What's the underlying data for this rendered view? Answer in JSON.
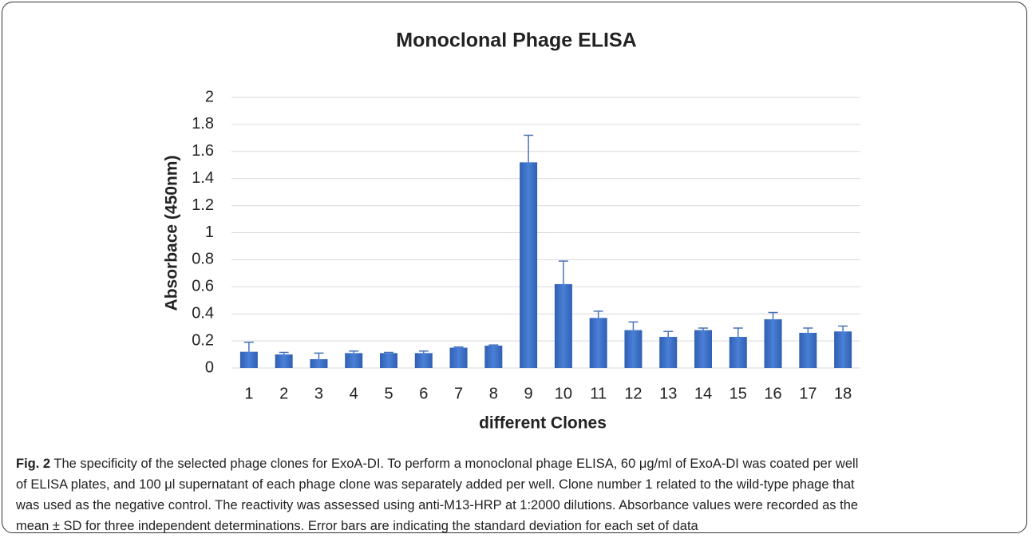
{
  "chart_data": {
    "type": "bar",
    "title": "Monoclonal Phage ELISA",
    "y_label": "Absorbace  (450nm)",
    "x_label": "different Clones",
    "categories": [
      "1",
      "2",
      "3",
      "4",
      "5",
      "6",
      "7",
      "8",
      "9",
      "10",
      "11",
      "12",
      "13",
      "14",
      "15",
      "16",
      "17",
      "18"
    ],
    "values": [
      0.12,
      0.1,
      0.065,
      0.11,
      0.11,
      0.11,
      0.15,
      0.165,
      1.52,
      0.62,
      0.37,
      0.28,
      0.23,
      0.28,
      0.23,
      0.36,
      0.26,
      0.27
    ],
    "errors": [
      0.07,
      0.015,
      0.045,
      0.015,
      0.005,
      0.015,
      0.005,
      0.005,
      0.2,
      0.17,
      0.05,
      0.06,
      0.04,
      0.015,
      0.065,
      0.05,
      0.035,
      0.04
    ],
    "color": "#3a6fc4",
    "ylim": [
      0,
      2
    ],
    "yticks": [
      0,
      0.2,
      0.4,
      0.6,
      0.8,
      1,
      1.2,
      1.4,
      1.6,
      1.8,
      2
    ],
    "grid": true
  },
  "caption": {
    "label": "Fig. 2",
    "lines": [
      "The specificity of the selected phage clones for ExoA-DI. To perform a monoclonal phage ELISA, 60 μg/ml of ExoA-DI was coated per well",
      "of ELISA plates, and 100 μl supernatant of each phage clone was separately added per well. Clone number 1 related to the wild-type phage that",
      "was used as the negative control. The reactivity was assessed using anti-M13-HRP at 1:2000 dilutions. Absorbance values were recorded as the",
      "mean ± SD for three independent determinations. Error bars are indicating the standard deviation for each set of data"
    ]
  }
}
